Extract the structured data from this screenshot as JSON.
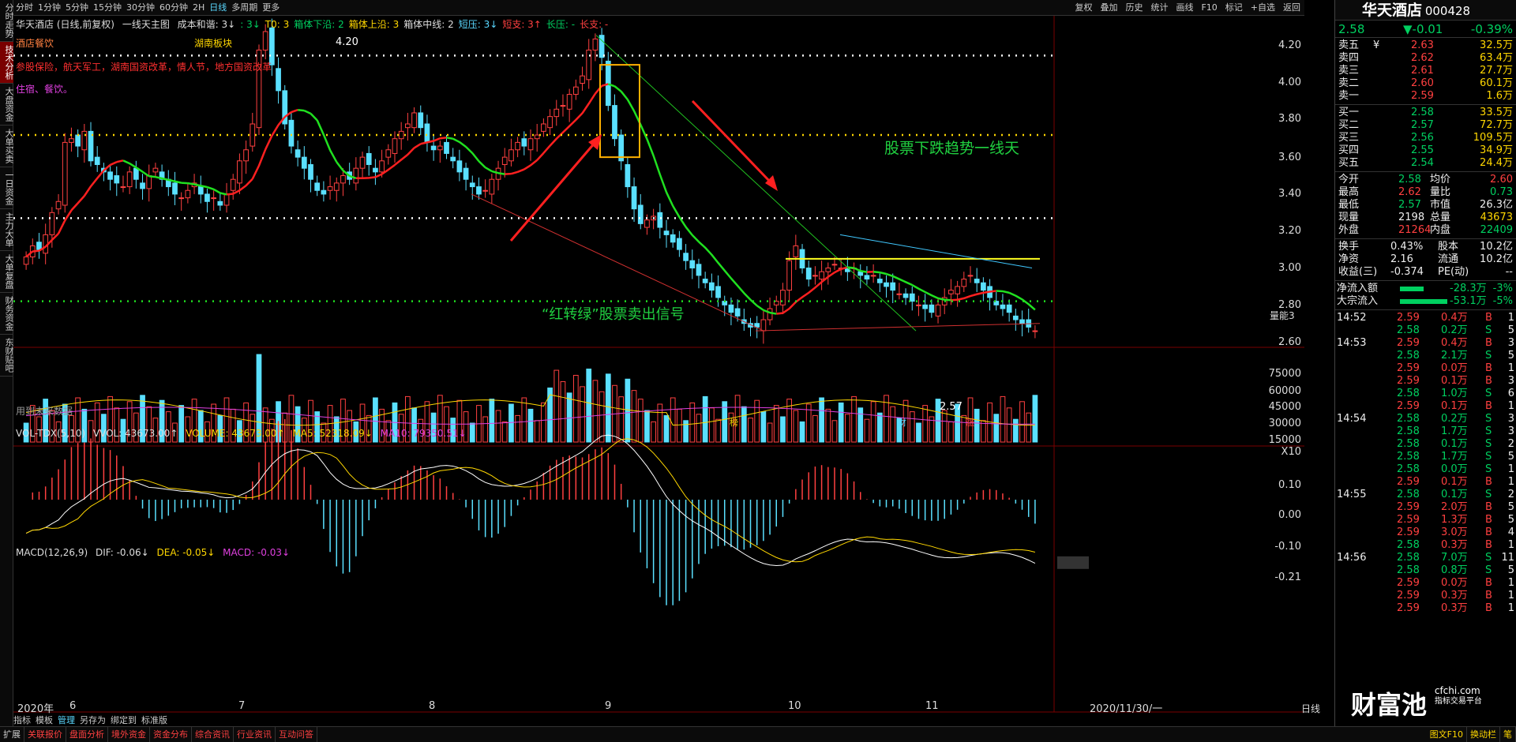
{
  "rail": [
    "分时走势",
    "技术分析",
    "大盘资金",
    "大单买卖",
    "一日资金",
    "主力大单",
    "大单复盘",
    "财务资金",
    "东财贴吧"
  ],
  "topbar": {
    "periods": [
      "分时",
      "1分钟",
      "5分钟",
      "15分钟",
      "30分钟",
      "60分钟",
      "2H",
      "日线",
      "多周期",
      "更多"
    ],
    "active": "日线",
    "right": [
      "复权",
      "叠加",
      "历史",
      "统计",
      "画线",
      "F10",
      "标记",
      "+自选",
      "返回"
    ]
  },
  "main_legend": {
    "title": "华天酒店 (日线,前复权)",
    "indicator": "一线天主图",
    "items": [
      {
        "t": "成本和谐: 3↓",
        "c": "#ddd"
      },
      {
        "t": ": 3↓",
        "c": "#00d060"
      },
      {
        "t": "T0: 3",
        "c": "#ffd700"
      },
      {
        "t": "箱体下沿: 2",
        "c": "#00d060"
      },
      {
        "t": "箱体上沿: 3",
        "c": "#ffd700"
      },
      {
        "t": "箱体中线: 2",
        "c": "#ddd"
      },
      {
        "t": "短压: 3↓",
        "c": "#5ad8ff"
      },
      {
        "t": "短支: 3↑",
        "c": "#ff4040"
      },
      {
        "t": "长压: -",
        "c": "#00d060"
      },
      {
        "t": "长支: -",
        "c": "#ff4040"
      }
    ]
  },
  "info": {
    "concept1": "酒店餐饮",
    "concept2": "湖南板块",
    "tags": "参股保险，航天军工，湖南国资改革，情人节，地方国资改革",
    "biz": "住宿、餐饮。",
    "future": "用到未来数据"
  },
  "annotations": {
    "trend": "股票下跌趋势一线天",
    "signal": "“红转绿”股票卖出信号",
    "high": "4.20",
    "low": "2.57",
    "right_tag": "量能3",
    "markers": [
      "榜",
      "财",
      "涨"
    ]
  },
  "price_axis": [
    "4.20",
    "4.00",
    "3.80",
    "3.60",
    "3.40",
    "3.20",
    "3.00",
    "2.80",
    "2.60"
  ],
  "vol_legend": {
    "name": "VOL-TDX(5,10)",
    "vvol": "VVOL: 43673.00↑",
    "volume": "VOLUME: 43673.00↑",
    "ma5": "MA5: 52318.09↓",
    "ma10": "MA10: 79350.51↓"
  },
  "vol_axis": [
    "75000",
    "60000",
    "45000",
    "30000",
    "15000",
    "X10"
  ],
  "macd_legend": {
    "name": "MACD(12,26,9)",
    "dif": "DIF: -0.06↓",
    "dea": "DEA: -0.05↓",
    "macd": "MACD: -0.03↓"
  },
  "macd_axis": [
    "0.10",
    "0.00",
    "-0.10",
    "-0.21"
  ],
  "x_labels": [
    "2020年",
    "6",
    "7",
    "8",
    "9",
    "10",
    "11",
    "2020/11/30/一"
  ],
  "tools": [
    "指标",
    "模板",
    "管理",
    "另存为",
    "绑定到",
    "标准版"
  ],
  "tools_active": "管理",
  "period_tag": "日线",
  "quote": {
    "name": "华天酒店",
    "code": "000428",
    "price": "2.58",
    "change": "▼-0.01",
    "pct": "-0.39%",
    "asks": [
      [
        "卖五",
        "¥",
        "2.63",
        "32.5万"
      ],
      [
        "卖四",
        "",
        "2.62",
        "63.4万"
      ],
      [
        "卖三",
        "",
        "2.61",
        "27.7万"
      ],
      [
        "卖二",
        "",
        "2.60",
        "60.1万"
      ],
      [
        "卖一",
        "",
        "2.59",
        "1.6万"
      ]
    ],
    "bids": [
      [
        "买一",
        "2.58",
        "33.5万"
      ],
      [
        "买二",
        "2.57",
        "72.7万"
      ],
      [
        "买三",
        "2.56",
        "109.5万"
      ],
      [
        "买四",
        "2.55",
        "34.9万"
      ],
      [
        "买五",
        "2.54",
        "24.4万"
      ]
    ],
    "stats": [
      [
        "今开",
        "2.58",
        "均价",
        "2.60"
      ],
      [
        "最高",
        "2.62",
        "量比",
        "0.73"
      ],
      [
        "最低",
        "2.57",
        "市值",
        "26.3亿"
      ],
      [
        "现量",
        "2198",
        "总量",
        "43673"
      ],
      [
        "外盘",
        "21264",
        "内盘",
        "22409"
      ]
    ],
    "stats2": [
      [
        "换手",
        "0.43%",
        "股本",
        "10.2亿"
      ],
      [
        "净资",
        "2.16",
        "流通",
        "10.2亿"
      ],
      [
        "收益(三)",
        "-0.374",
        "PE(动)",
        "--"
      ]
    ],
    "flows": [
      [
        "净流入额",
        "-28.3万",
        "-3%"
      ],
      [
        "大宗流入",
        "-53.1万",
        "-5%"
      ]
    ],
    "ticks": [
      [
        "14:52",
        "2.59",
        "0.4万",
        "B",
        "1"
      ],
      [
        "",
        "2.58",
        "0.2万",
        "S",
        "5"
      ],
      [
        "14:53",
        "2.59",
        "0.4万",
        "B",
        "3"
      ],
      [
        "",
        "2.58",
        "2.1万",
        "S",
        "5"
      ],
      [
        "",
        "2.59",
        "0.0万",
        "B",
        "1"
      ],
      [
        "",
        "2.59",
        "0.1万",
        "B",
        "3"
      ],
      [
        "",
        "2.58",
        "1.0万",
        "S",
        "6"
      ],
      [
        "",
        "2.59",
        "0.1万",
        "B",
        "1"
      ],
      [
        "14:54",
        "2.58",
        "0.2万",
        "S",
        "3"
      ],
      [
        "",
        "2.58",
        "1.7万",
        "S",
        "3"
      ],
      [
        "",
        "2.58",
        "0.1万",
        "S",
        "2"
      ],
      [
        "",
        "2.58",
        "1.7万",
        "S",
        "5"
      ],
      [
        "",
        "2.58",
        "0.0万",
        "S",
        "1"
      ],
      [
        "",
        "2.59",
        "0.1万",
        "B",
        "1"
      ],
      [
        "14:55",
        "2.58",
        "0.1万",
        "S",
        "2"
      ],
      [
        "",
        "2.59",
        "2.0万",
        "B",
        "5"
      ],
      [
        "",
        "2.59",
        "1.3万",
        "B",
        "5"
      ],
      [
        "",
        "2.59",
        "3.0万",
        "B",
        "4"
      ],
      [
        "",
        "2.58",
        "0.3万",
        "B",
        "1"
      ],
      [
        "14:56",
        "2.58",
        "7.0万",
        "S",
        "11"
      ],
      [
        "",
        "2.58",
        "0.8万",
        "S",
        "5"
      ],
      [
        "",
        "2.59",
        "0.0万",
        "B",
        "1"
      ],
      [
        "",
        "2.59",
        "0.3万",
        "B",
        "1"
      ],
      [
        "",
        "2.59",
        "0.3万",
        "B",
        "1"
      ]
    ],
    "watermark": "财富池",
    "watermark_site": "cfchi.com",
    "watermark_sub": "指标交易平台"
  },
  "bottombar": [
    "扩展",
    "关联报价",
    "盘面分析",
    "境外资金",
    "资金分布",
    "综合资讯",
    "行业资讯",
    "互动问答"
  ],
  "bottom_right": [
    "图文F10",
    "换动栏",
    "笔"
  ]
}
